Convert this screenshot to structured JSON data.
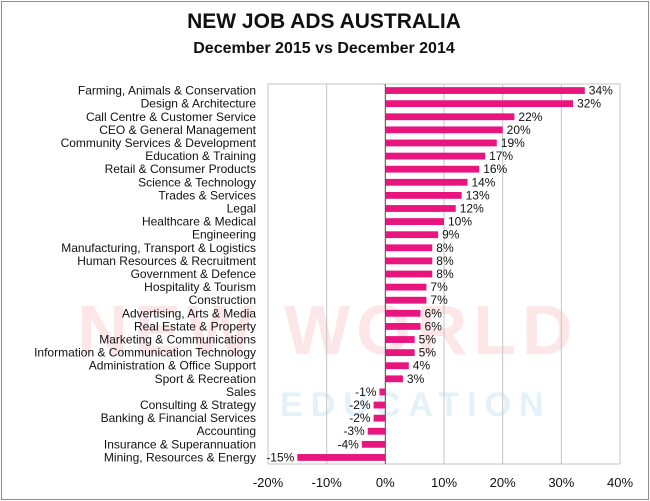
{
  "chart_data": {
    "type": "bar",
    "orientation": "horizontal",
    "title": "NEW JOB ADS AUSTRALIA",
    "subtitle": "December 2015 vs December 2014",
    "categories": [
      "Farming, Animals & Conservation",
      "Design & Architecture",
      "Call Centre & Customer Service",
      "CEO & General Management",
      "Community Services & Development",
      "Education & Training",
      "Retail & Consumer Products",
      "Science & Technology",
      "Trades & Services",
      "Legal",
      "Healthcare & Medical",
      "Engineering",
      "Manufacturing, Transport & Logistics",
      "Human Resources & Recruitment",
      "Government & Defence",
      "Hospitality & Tourism",
      "Construction",
      "Advertising, Arts & Media",
      "Real Estate & Property",
      "Marketing & Communications",
      "Information & Communication Technology",
      "Administration & Office Support",
      "Sport & Recreation",
      "Sales",
      "Consulting & Strategy",
      "Banking & Financial Services",
      "Accounting",
      "Insurance & Superannuation",
      "Mining, Resources & Energy"
    ],
    "values": [
      34,
      32,
      22,
      20,
      19,
      17,
      16,
      14,
      13,
      12,
      10,
      9,
      8,
      8,
      8,
      7,
      7,
      6,
      6,
      5,
      5,
      4,
      3,
      -1,
      -2,
      -2,
      -3,
      -4,
      -15
    ],
    "data_labels": [
      "34%",
      "32%",
      "22%",
      "20%",
      "19%",
      "17%",
      "16%",
      "14%",
      "13%",
      "12%",
      "10%",
      "9%",
      "8%",
      "8%",
      "8%",
      "7%",
      "7%",
      "6%",
      "6%",
      "5%",
      "5%",
      "4%",
      "3%",
      "-1%",
      "-2%",
      "-2%",
      "-3%",
      "-4%",
      "-15%"
    ],
    "xlim": [
      -20,
      40
    ],
    "xticks": [
      -20,
      -10,
      0,
      10,
      20,
      30,
      40
    ],
    "xtick_labels": [
      "-20%",
      "-10%",
      "0%",
      "10%",
      "20%",
      "30%",
      "40%"
    ],
    "xlabel": "",
    "ylabel": "",
    "grid": "vertical",
    "legend": "none",
    "bar_color": "#e8157f"
  },
  "watermark": {
    "top_text": "NEW WORLD",
    "bottom_text": "EDUCATION",
    "colors": [
      "#e63c46",
      "#2896dc"
    ]
  }
}
